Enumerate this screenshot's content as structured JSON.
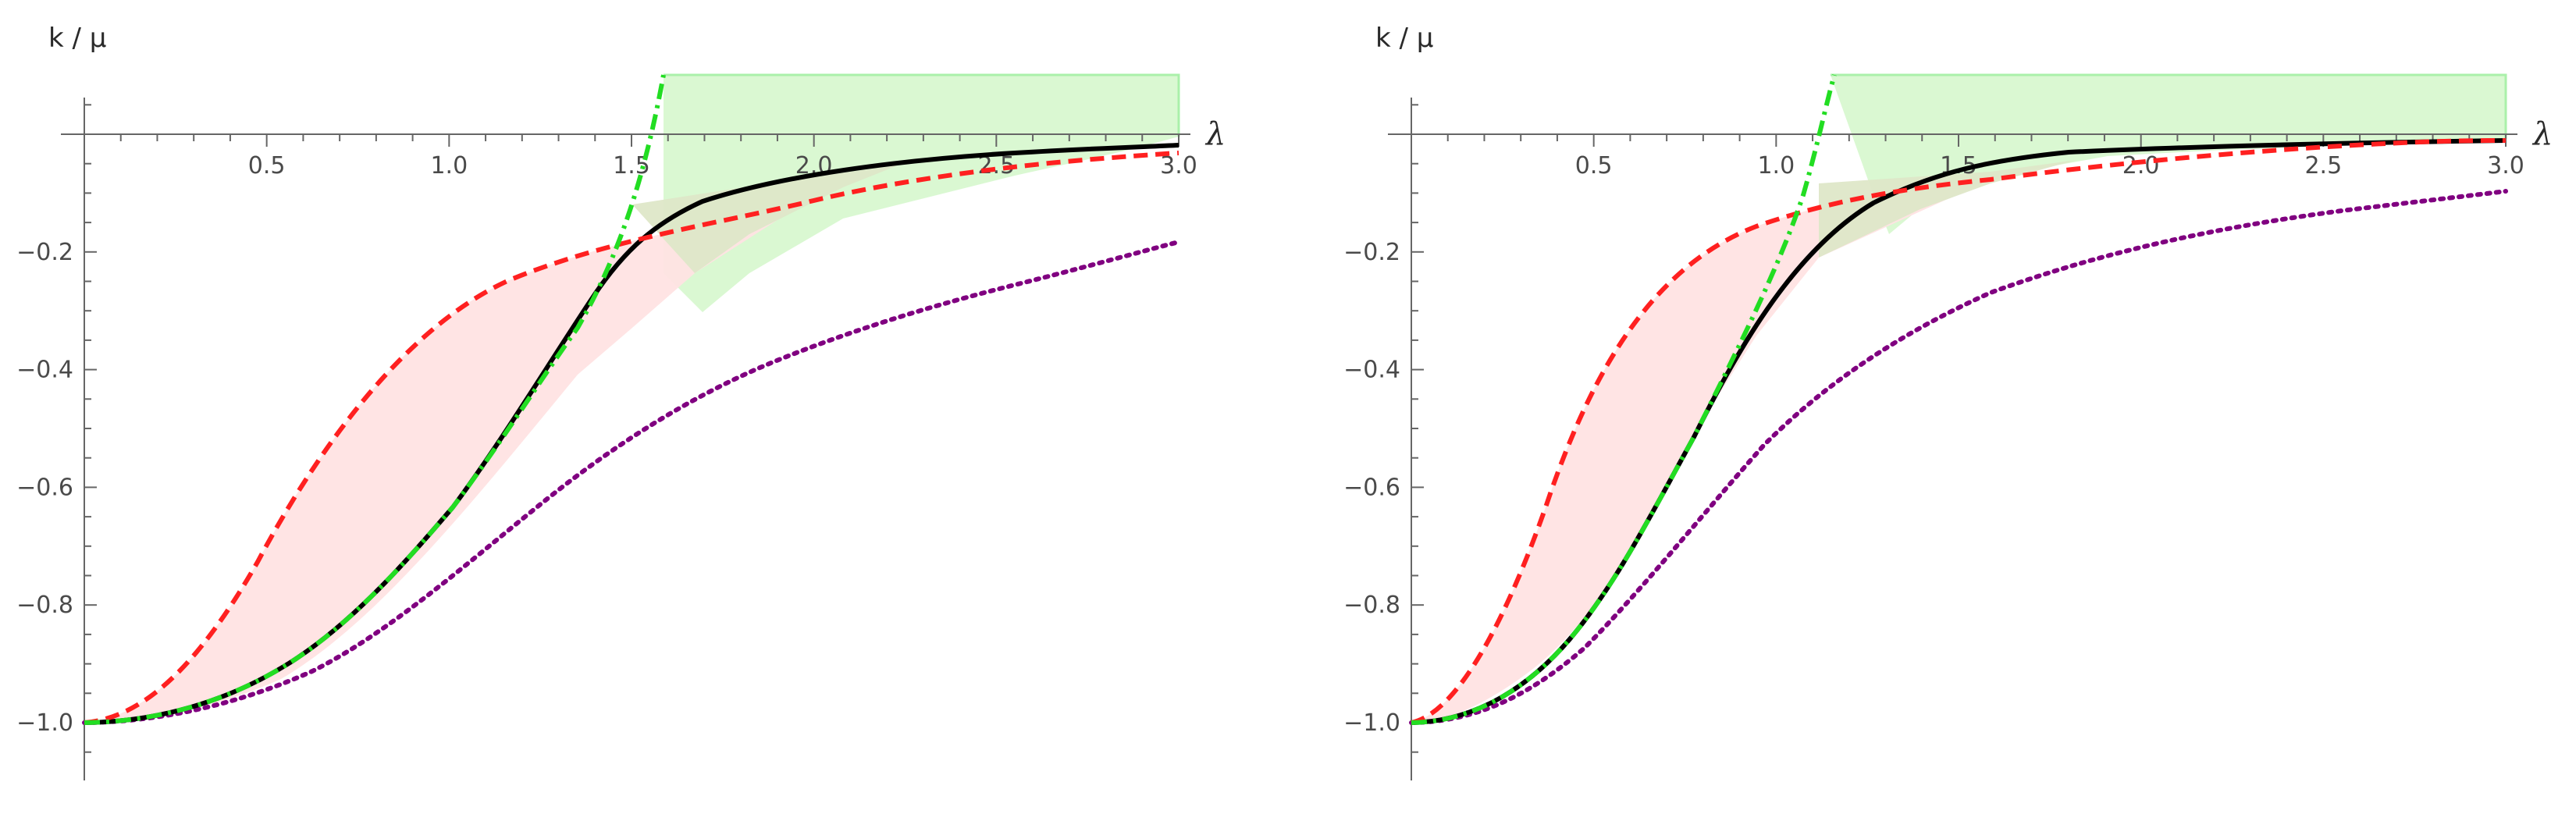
{
  "chart_data": [
    {
      "type": "line",
      "xlabel": "λ",
      "ylabel": "k / μ",
      "xlim": [
        0,
        3.0
      ],
      "ylim": [
        -1.1,
        0.1
      ],
      "xticks": [
        0.5,
        1.0,
        1.5,
        2.0,
        2.5,
        3.0
      ],
      "xtick_labels": [
        "0.5",
        "1.0",
        "1.5",
        "2.0",
        "2.5",
        "3.0"
      ],
      "yticks": [
        -0.2,
        -0.4,
        -0.6,
        -0.8,
        -1.0
      ],
      "ytick_labels": [
        "−0.2",
        "−0.4",
        "−0.6",
        "−0.8",
        "−1.0"
      ],
      "grid": false,
      "series": [
        {
          "style": "solid",
          "color": "#000000",
          "x": [
            0,
            0.25,
            0.5,
            0.75,
            1.0,
            1.25,
            1.5,
            1.75,
            2.0,
            2.25,
            2.5,
            2.75,
            3.0
          ],
          "y": [
            -1.0,
            -0.97,
            -0.87,
            -0.72,
            -0.55,
            -0.36,
            -0.24,
            -0.155,
            -0.11,
            -0.085,
            -0.065,
            -0.05,
            -0.04
          ]
        },
        {
          "style": "dashed",
          "color": "#ff2020",
          "x": [
            0,
            0.25,
            0.5,
            0.75,
            1.0,
            1.25,
            1.5,
            1.75,
            2.0,
            2.25,
            2.5,
            2.75,
            3.0
          ],
          "y": [
            -1.0,
            -0.84,
            -0.52,
            -0.33,
            -0.22,
            -0.16,
            -0.12,
            -0.09,
            -0.07,
            -0.055,
            -0.045,
            -0.035,
            -0.025
          ]
        },
        {
          "style": "dotted",
          "color": "#800080",
          "x": [
            0,
            0.25,
            0.5,
            0.75,
            1.0,
            1.25,
            1.5,
            1.75,
            2.0,
            2.25,
            2.5,
            2.75,
            3.0
          ],
          "y": [
            -1.0,
            -0.97,
            -0.87,
            -0.75,
            -0.62,
            -0.51,
            -0.42,
            -0.35,
            -0.295,
            -0.26,
            -0.23,
            -0.205,
            -0.185
          ]
        },
        {
          "style": "dashdot",
          "color": "#22dd22",
          "x": [
            0,
            0.25,
            0.5,
            0.75,
            1.0,
            1.25,
            1.5,
            1.6
          ],
          "y": [
            -1.0,
            -0.97,
            -0.87,
            -0.72,
            -0.55,
            -0.28,
            0.0,
            0.1
          ]
        }
      ],
      "shaded_regions": [
        {
          "color": "#ffe3e3",
          "between": "dashed-red and dashdot-green"
        },
        {
          "color": "#d8f8d0",
          "between": "solid-black and upper bound",
          "x_range": [
            1.0,
            3.0
          ]
        }
      ]
    },
    {
      "type": "line",
      "xlabel": "λ",
      "ylabel": "k / μ",
      "xlim": [
        0,
        3.0
      ],
      "ylim": [
        -1.1,
        0.1
      ],
      "xticks": [
        0.5,
        1.0,
        1.5,
        2.0,
        2.5,
        3.0
      ],
      "xtick_labels": [
        "0.5",
        "1.0",
        "1.5",
        "2.0",
        "2.5",
        "3.0"
      ],
      "yticks": [
        -0.2,
        -0.4,
        -0.6,
        -0.8,
        -1.0
      ],
      "ytick_labels": [
        "−0.2",
        "−0.4",
        "−0.6",
        "−0.8",
        "−1.0"
      ],
      "grid": false,
      "series": [
        {
          "style": "solid",
          "color": "#000000",
          "x": [
            0,
            0.25,
            0.5,
            0.75,
            1.0,
            1.25,
            1.5,
            1.75,
            2.0,
            2.25,
            2.5,
            2.75,
            3.0
          ],
          "y": [
            -1.0,
            -0.94,
            -0.78,
            -0.55,
            -0.3,
            -0.13,
            -0.06,
            -0.035,
            -0.025,
            -0.02,
            -0.015,
            -0.012,
            -0.01
          ]
        },
        {
          "style": "dashed",
          "color": "#ff2020",
          "x": [
            0,
            0.25,
            0.5,
            0.75,
            1.0,
            1.25,
            1.5,
            1.75,
            2.0,
            2.25,
            2.5,
            2.75,
            3.0
          ],
          "y": [
            -1.0,
            -0.7,
            -0.34,
            -0.17,
            -0.1,
            -0.065,
            -0.04,
            -0.028,
            -0.02,
            -0.015,
            -0.012,
            -0.01,
            -0.008
          ]
        },
        {
          "style": "dotted",
          "color": "#800080",
          "x": [
            0,
            0.25,
            0.5,
            0.75,
            1.0,
            1.25,
            1.5,
            1.75,
            2.0,
            2.25,
            2.5,
            2.75,
            3.0
          ],
          "y": [
            -1.0,
            -0.95,
            -0.83,
            -0.66,
            -0.5,
            -0.38,
            -0.29,
            -0.23,
            -0.18,
            -0.15,
            -0.125,
            -0.105,
            -0.09
          ]
        },
        {
          "style": "dashdot",
          "color": "#22dd22",
          "x": [
            0,
            0.25,
            0.5,
            0.75,
            1.0,
            1.1,
            1.2
          ],
          "y": [
            -1.0,
            -0.94,
            -0.78,
            -0.54,
            -0.2,
            -0.05,
            0.1
          ]
        }
      ],
      "shaded_regions": [
        {
          "color": "#ffe3e3",
          "between": "dashed-red and dashdot-green"
        },
        {
          "color": "#d8f8d0",
          "between": "solid-black and upper bound",
          "x_range": [
            0.95,
            3.0
          ]
        }
      ]
    }
  ]
}
